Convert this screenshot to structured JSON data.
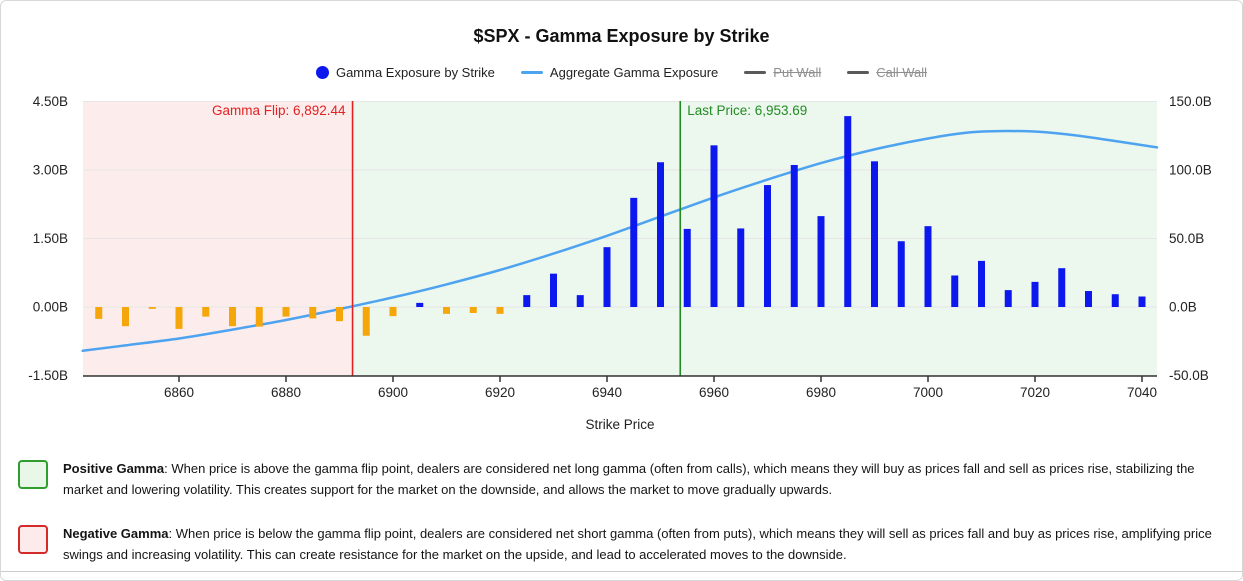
{
  "title": "$SPX - Gamma Exposure by Strike",
  "legend": {
    "items": [
      {
        "label": "Gamma Exposure by Strike",
        "type": "dot",
        "color": "#0d18ee",
        "active": true
      },
      {
        "label": "Aggregate Gamma Exposure",
        "type": "line",
        "color": "#4da3f0",
        "active": true
      },
      {
        "label": "Put Wall",
        "type": "line",
        "color": "#5a5a5a",
        "active": false
      },
      {
        "label": "Call Wall",
        "type": "line",
        "color": "#5a5a5a",
        "active": false
      }
    ]
  },
  "chart_data": {
    "type": "bar",
    "title": "$SPX - Gamma Exposure by Strike",
    "xlabel": "Strike Price",
    "x_ticks": [
      6860,
      6880,
      6900,
      6920,
      6940,
      6960,
      6980,
      7000,
      7020,
      7040
    ],
    "x_range": [
      6842,
      7043
    ],
    "y_left": {
      "tick_labels": [
        "4.50B",
        "3.00B",
        "1.50B",
        "0.00B",
        "-1.50B"
      ],
      "tick_values": [
        4.5,
        3.0,
        1.5,
        0.0,
        -1.5
      ],
      "range": [
        -1.5,
        4.5
      ],
      "unit": "B"
    },
    "y_right": {
      "tick_labels": [
        "150.0B",
        "100.0B",
        "50.0B",
        "0.0B",
        "-50.0B"
      ],
      "tick_values": [
        150,
        100,
        50,
        0,
        -50
      ],
      "range": [
        -50,
        150
      ],
      "unit": "B"
    },
    "grid": true,
    "bars": {
      "name": "Gamma Exposure by Strike",
      "axis": "left",
      "unit": "B",
      "positive_color": "#0d18ee",
      "negative_color": "#f5a60b",
      "strikes": [
        6845,
        6850,
        6855,
        6860,
        6865,
        6870,
        6875,
        6880,
        6885,
        6890,
        6895,
        6900,
        6905,
        6910,
        6915,
        6920,
        6925,
        6930,
        6935,
        6940,
        6945,
        6950,
        6955,
        6960,
        6965,
        6970,
        6975,
        6980,
        6985,
        6990,
        6995,
        7000,
        7005,
        7010,
        7015,
        7020,
        7025,
        7030,
        7035,
        7040
      ],
      "values": [
        -0.26,
        -0.42,
        -0.04,
        -0.48,
        -0.21,
        -0.42,
        -0.43,
        -0.21,
        -0.25,
        -0.31,
        -0.63,
        -0.2,
        0.09,
        -0.15,
        -0.13,
        -0.15,
        0.26,
        0.73,
        0.26,
        1.31,
        2.39,
        3.17,
        1.71,
        3.54,
        1.72,
        2.67,
        3.11,
        1.99,
        4.18,
        3.19,
        1.44,
        1.77,
        0.69,
        1.01,
        0.37,
        0.55,
        0.85,
        0.35,
        0.28,
        0.23
      ]
    },
    "aggregate": {
      "name": "Aggregate Gamma Exposure",
      "axis": "right",
      "unit": "B",
      "color": "#4da3f0",
      "points": [
        [
          6842,
          -32
        ],
        [
          6850,
          -28
        ],
        [
          6860,
          -23
        ],
        [
          6870,
          -16.5
        ],
        [
          6880,
          -9.5
        ],
        [
          6890,
          -1.5
        ],
        [
          6900,
          7
        ],
        [
          6910,
          16.5
        ],
        [
          6920,
          27
        ],
        [
          6930,
          39
        ],
        [
          6940,
          52
        ],
        [
          6950,
          66
        ],
        [
          6960,
          80
        ],
        [
          6970,
          93
        ],
        [
          6980,
          105
        ],
        [
          6990,
          115
        ],
        [
          7000,
          123
        ],
        [
          7008,
          127.5
        ],
        [
          7015,
          128.5
        ],
        [
          7022,
          127.5
        ],
        [
          7030,
          124
        ],
        [
          7042.8,
          116.5
        ]
      ]
    },
    "vlines": [
      {
        "id": "gamma-flip",
        "x": 6892.44,
        "label": "Gamma Flip: 6,892.44",
        "color": "#e02222",
        "label_side": "left"
      },
      {
        "id": "last-price",
        "x": 6953.69,
        "label": "Last Price: 6,953.69",
        "color": "#228b22",
        "label_side": "right"
      }
    ],
    "regions": [
      {
        "id": "negative-gamma-zone",
        "from": 6842,
        "to": 6892.44,
        "color": "#fdecec"
      },
      {
        "id": "positive-gamma-zone",
        "from": 6892.44,
        "to": 7043,
        "color": "#ecf7ee"
      }
    ]
  },
  "notes": {
    "positive": {
      "title": "Positive Gamma",
      "body": ": When price is above the gamma flip point, dealers are considered net long gamma (often from calls), which means they will buy as prices fall and sell as prices rise, stabilizing the market and lowering volatility. This creates support for the market on the downside, and allows the market to move gradually upwards."
    },
    "negative": {
      "title": "Negative Gamma",
      "body": ": When price is below the gamma flip point, dealers are considered net short gamma (often from puts), which means they will sell as prices fall and buy as prices rise, amplifying price swings and increasing volatility. This can create resistance for the market on the upside, and lead to accelerated moves to the downside."
    }
  }
}
